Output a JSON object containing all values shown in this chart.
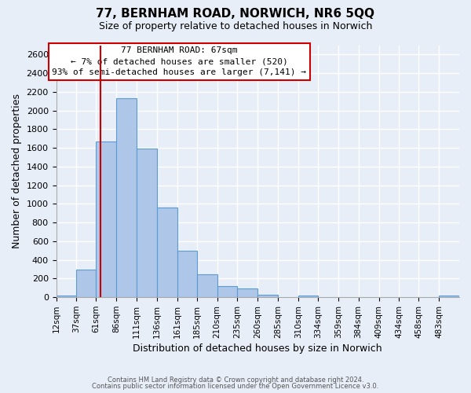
{
  "title": "77, BERNHAM ROAD, NORWICH, NR6 5QQ",
  "subtitle": "Size of property relative to detached houses in Norwich",
  "xlabel": "Distribution of detached houses by size in Norwich",
  "ylabel": "Number of detached properties",
  "bar_color": "#aec6e8",
  "bar_edge_color": "#5b9bd5",
  "background_color": "#e8eef8",
  "grid_color": "#ffffff",
  "annotation_box_color": "#ffffff",
  "annotation_box_edge": "#cc0000",
  "vline_color": "#cc0000",
  "vline_x": 67,
  "annotation_line1": "77 BERNHAM ROAD: 67sqm",
  "annotation_line2": "← 7% of detached houses are smaller (520)",
  "annotation_line3": "93% of semi-detached houses are larger (7,141) →",
  "bin_edges": [
    12,
    37,
    61,
    86,
    111,
    136,
    161,
    185,
    210,
    235,
    260,
    285,
    310,
    334,
    359,
    384,
    409,
    434,
    458,
    483,
    508
  ],
  "bin_heights": [
    20,
    300,
    1670,
    2130,
    1590,
    960,
    500,
    250,
    120,
    95,
    30,
    5,
    20,
    5,
    5,
    5,
    5,
    5,
    5,
    20
  ],
  "ylim": [
    0,
    2700
  ],
  "yticks": [
    0,
    200,
    400,
    600,
    800,
    1000,
    1200,
    1400,
    1600,
    1800,
    2000,
    2200,
    2400,
    2600
  ],
  "footer1": "Contains HM Land Registry data © Crown copyright and database right 2024.",
  "footer2": "Contains public sector information licensed under the Open Government Licence v3.0."
}
